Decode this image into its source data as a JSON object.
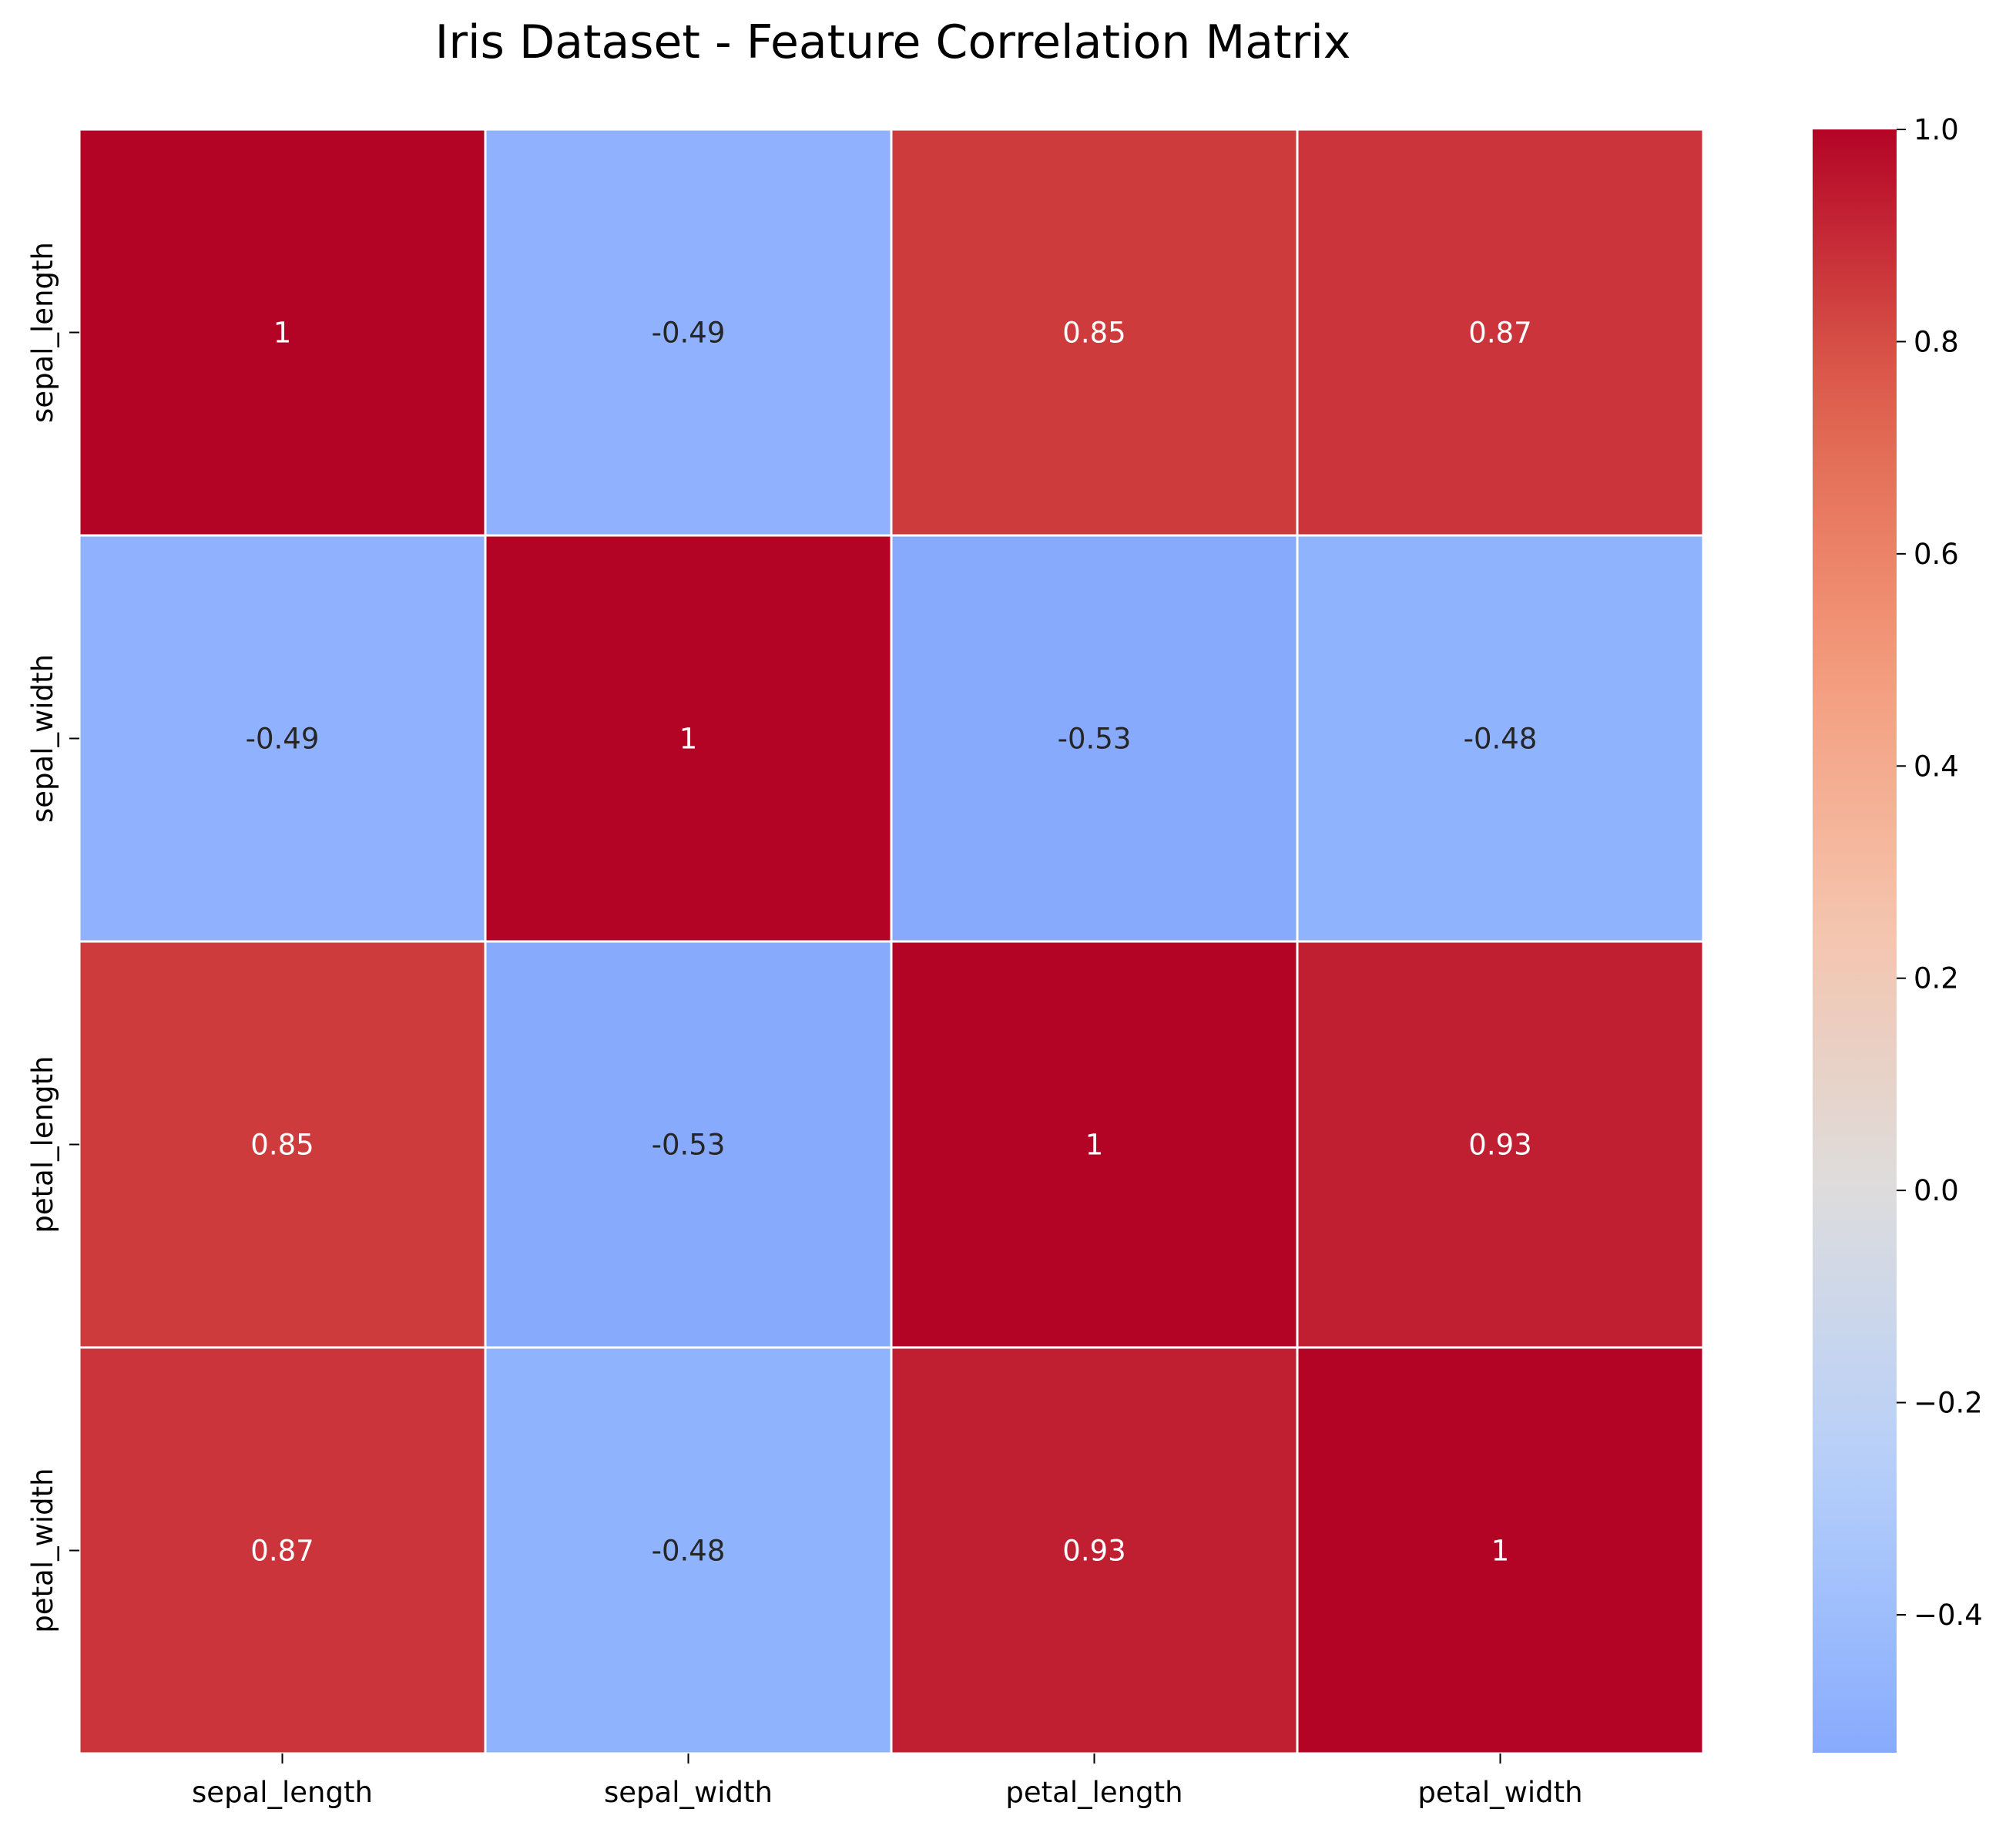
{
  "chart_data": {
    "type": "heatmap",
    "title": "Iris Dataset - Feature Correlation Matrix",
    "xlabel": "",
    "ylabel": "",
    "row_labels": [
      "sepal_length",
      "sepal_width",
      "petal_length",
      "petal_width"
    ],
    "col_labels": [
      "sepal_length",
      "sepal_width",
      "petal_length",
      "petal_width"
    ],
    "values": [
      [
        1,
        -0.49,
        0.85,
        0.87
      ],
      [
        -0.49,
        1,
        -0.53,
        -0.48
      ],
      [
        0.85,
        -0.53,
        1,
        0.93
      ],
      [
        0.87,
        -0.48,
        0.93,
        1
      ]
    ],
    "cell_labels": [
      [
        "1",
        "-0.49",
        "0.85",
        "0.87"
      ],
      [
        "-0.49",
        "1",
        "-0.53",
        "-0.48"
      ],
      [
        "0.85",
        "-0.53",
        "1",
        "0.93"
      ],
      [
        "0.87",
        "-0.48",
        "0.93",
        "1"
      ]
    ],
    "colormap": "coolwarm",
    "center": 0,
    "colorbar": {
      "range": [
        -0.53,
        1.0
      ],
      "ticks": [
        1.0,
        0.8,
        0.6,
        0.4,
        0.2,
        0.0,
        -0.2,
        -0.4
      ],
      "tick_labels": [
        "1.0",
        "0.8",
        "0.6",
        "0.4",
        "0.2",
        "0.0",
        "−0.2",
        "−0.4"
      ],
      "position": "right"
    }
  }
}
